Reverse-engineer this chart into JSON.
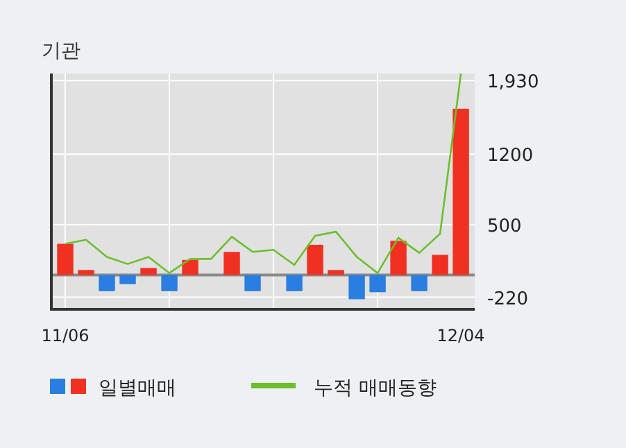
{
  "chart_data": {
    "type": "bar",
    "title": "기관",
    "categories": [
      "11/06",
      null,
      null,
      null,
      null,
      null,
      null,
      null,
      null,
      null,
      null,
      null,
      null,
      null,
      null,
      null,
      null,
      null,
      null,
      "12/04"
    ],
    "series": [
      {
        "name": "일별매매",
        "colors": [
          "#f03020",
          "#f03020",
          "#2a7de1",
          "#2a7de1",
          "#f03020",
          "#2a7de1",
          "#f03020",
          "#f03020",
          "#f03020",
          "#2a7de1",
          "#f03020",
          "#2a7de1",
          "#f03020",
          "#f03020",
          "#2a7de1",
          "#2a7de1",
          "#f03020",
          "#2a7de1",
          "#f03020",
          "#f03020"
        ],
        "values": [
          310,
          50,
          -160,
          -90,
          70,
          -160,
          150,
          0,
          230,
          -160,
          0,
          -160,
          300,
          50,
          -240,
          -170,
          340,
          -160,
          200,
          1650
        ]
      },
      {
        "name": "누적 매매동향",
        "type": "line",
        "color": "#6cbf2a",
        "values": [
          310,
          350,
          180,
          110,
          180,
          20,
          160,
          160,
          380,
          230,
          250,
          100,
          390,
          430,
          180,
          20,
          370,
          220,
          410,
          2000
        ]
      }
    ],
    "ylim": [
      -340,
      2000
    ],
    "yticks": [
      {
        "value": 1930,
        "label": "1,930"
      },
      1200,
      500,
      -220
    ],
    "ref_lines": [
      {
        "axis": "y",
        "value": 0,
        "color": "#8a8a8a"
      }
    ],
    "grid": true,
    "legend": "bottom"
  }
}
